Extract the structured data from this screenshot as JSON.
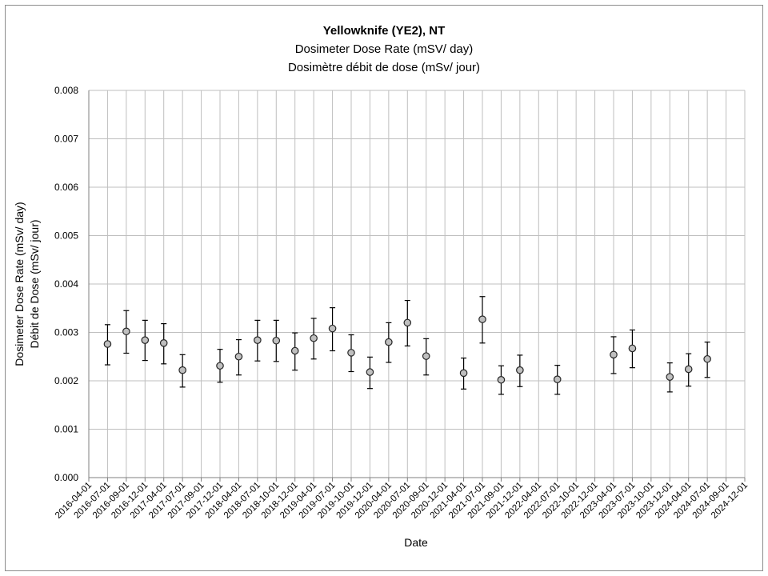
{
  "colors": {
    "grid": "#bfbfbf",
    "axis": "#7f7f7f",
    "marker_fill": "#bfbfbf",
    "marker_stroke": "#262626",
    "errorbar": "#000000",
    "border": "#8c8c8c"
  },
  "chart_data": {
    "type": "scatter",
    "title": "Yellowknife (YE2), NT",
    "subtitle_en": "Dosimeter Dose Rate (mSV/ day)",
    "subtitle_fr": "Dosimètre débit de dose (mSv/ jour)",
    "xlabel": "Date",
    "ylabel_en": "Dosimeter Dose Rate (mSv/ day)",
    "ylabel_fr": "Débit de Dose (mSv/ jour)",
    "ylim": [
      0,
      0.008
    ],
    "y_ticks": [
      "0.000",
      "0.001",
      "0.002",
      "0.003",
      "0.004",
      "0.005",
      "0.006",
      "0.007",
      "0.008"
    ],
    "x_ticks": [
      "2016-04-01",
      "2016-07-01",
      "2016-09-01",
      "2016-12-01",
      "2017-04-01",
      "2017-07-01",
      "2017-09-01",
      "2017-12-01",
      "2018-04-01",
      "2018-07-01",
      "2018-10-01",
      "2018-12-01",
      "2019-04-01",
      "2019-07-01",
      "2019-10-01",
      "2019-12-01",
      "2020-04-01",
      "2020-07-01",
      "2020-09-01",
      "2020-12-01",
      "2021-04-01",
      "2021-07-01",
      "2021-09-01",
      "2021-12-01",
      "2022-04-01",
      "2022-07-01",
      "2022-10-01",
      "2022-12-01",
      "2023-04-01",
      "2023-07-01",
      "2023-10-01",
      "2023-12-01",
      "2024-04-01",
      "2024-07-01",
      "2024-09-01",
      "2024-12-01"
    ],
    "grid": true,
    "legend": "none",
    "points": [
      {
        "x": "2016-07-01",
        "y": 0.00276,
        "low": 0.00233,
        "high": 0.00316
      },
      {
        "x": "2016-09-01",
        "y": 0.00302,
        "low": 0.00257,
        "high": 0.00345
      },
      {
        "x": "2016-12-01",
        "y": 0.00284,
        "low": 0.00242,
        "high": 0.00325
      },
      {
        "x": "2017-04-01",
        "y": 0.00278,
        "low": 0.00235,
        "high": 0.00318
      },
      {
        "x": "2017-07-01",
        "y": 0.00222,
        "low": 0.00187,
        "high": 0.00254
      },
      {
        "x": "2017-12-01",
        "y": 0.00231,
        "low": 0.00197,
        "high": 0.00265
      },
      {
        "x": "2018-04-01",
        "y": 0.0025,
        "low": 0.00212,
        "high": 0.00285
      },
      {
        "x": "2018-07-01",
        "y": 0.00284,
        "low": 0.00241,
        "high": 0.00325
      },
      {
        "x": "2018-10-01",
        "y": 0.00283,
        "low": 0.0024,
        "high": 0.00325
      },
      {
        "x": "2018-12-01",
        "y": 0.00262,
        "low": 0.00222,
        "high": 0.00299
      },
      {
        "x": "2019-04-01",
        "y": 0.00288,
        "low": 0.00245,
        "high": 0.00329
      },
      {
        "x": "2019-07-01",
        "y": 0.00308,
        "low": 0.00262,
        "high": 0.00351
      },
      {
        "x": "2019-10-01",
        "y": 0.00258,
        "low": 0.00219,
        "high": 0.00295
      },
      {
        "x": "2019-12-01",
        "y": 0.00218,
        "low": 0.00184,
        "high": 0.00249
      },
      {
        "x": "2020-04-01",
        "y": 0.0028,
        "low": 0.00238,
        "high": 0.0032
      },
      {
        "x": "2020-07-01",
        "y": 0.0032,
        "low": 0.00272,
        "high": 0.00366
      },
      {
        "x": "2020-09-01",
        "y": 0.00251,
        "low": 0.00212,
        "high": 0.00287
      },
      {
        "x": "2021-04-01",
        "y": 0.00216,
        "low": 0.00183,
        "high": 0.00247
      },
      {
        "x": "2021-07-01",
        "y": 0.00327,
        "low": 0.00278,
        "high": 0.00374
      },
      {
        "x": "2021-09-01",
        "y": 0.00202,
        "low": 0.00172,
        "high": 0.00231
      },
      {
        "x": "2021-12-01",
        "y": 0.00222,
        "low": 0.00188,
        "high": 0.00253
      },
      {
        "x": "2022-07-01",
        "y": 0.00203,
        "low": 0.00172,
        "high": 0.00232
      },
      {
        "x": "2023-04-01",
        "y": 0.00254,
        "low": 0.00215,
        "high": 0.00291
      },
      {
        "x": "2023-07-01",
        "y": 0.00267,
        "low": 0.00227,
        "high": 0.00305
      },
      {
        "x": "2023-12-01",
        "y": 0.00208,
        "low": 0.00177,
        "high": 0.00237
      },
      {
        "x": "2024-04-01",
        "y": 0.00224,
        "low": 0.00189,
        "high": 0.00256
      },
      {
        "x": "2024-07-01",
        "y": 0.00245,
        "low": 0.00207,
        "high": 0.0028
      }
    ]
  }
}
